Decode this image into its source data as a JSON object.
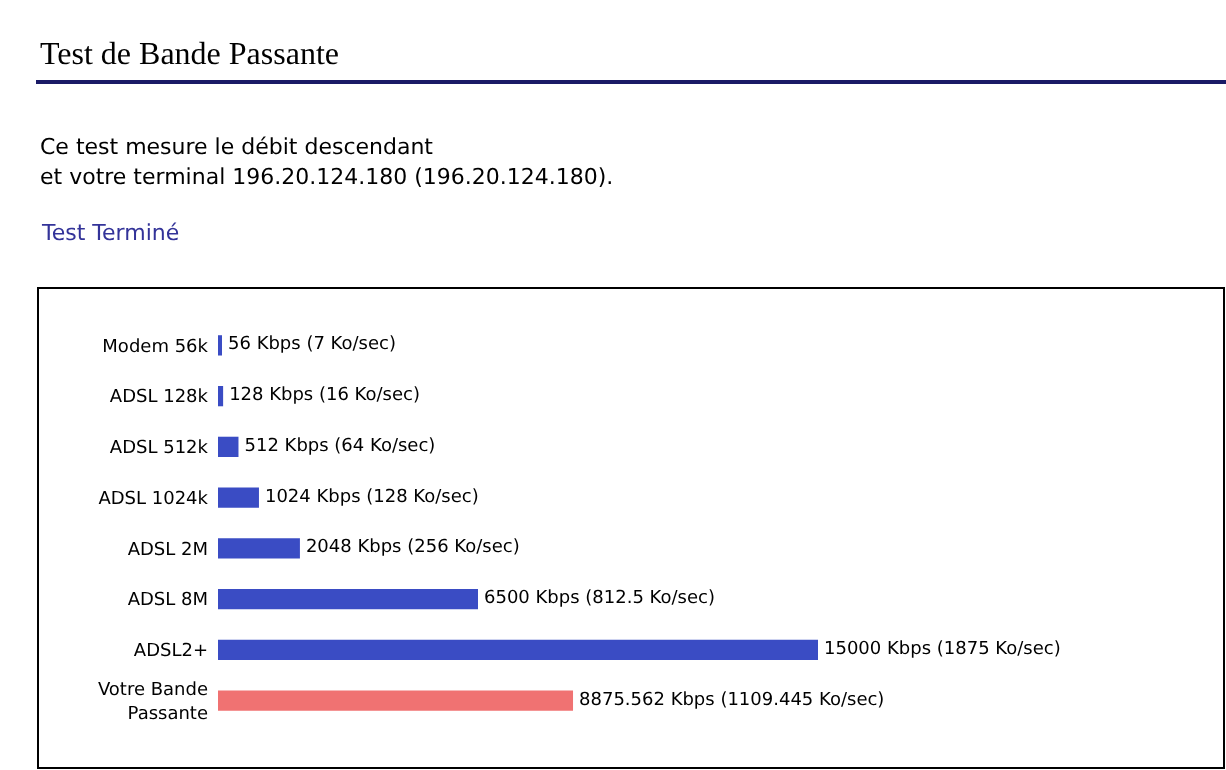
{
  "chart_data": {
    "type": "bar",
    "orientation": "horizontal",
    "title": "Test de Bande Passante",
    "annotations": [
      "Ce test mesure le débit descendant",
      "et votre terminal 196.20.124.180 (196.20.124.180).",
      "Test Terminé"
    ],
    "categories": [
      "Modem 56k",
      "ADSL 128k",
      "ADSL 512k",
      "ADSL 1024k",
      "ADSL 2M",
      "ADSL 8M",
      "ADSL2+",
      "Votre Bande Passante"
    ],
    "values": [
      56,
      128,
      512,
      1024,
      2048,
      6500,
      15000,
      8875.562
    ],
    "colors": [
      "#3a4cc4",
      "#3a4cc4",
      "#3a4cc4",
      "#3a4cc4",
      "#3a4cc4",
      "#3a4cc4",
      "#3a4cc4",
      "#f07272"
    ],
    "value_labels": [
      "56 Kbps (7 Ko/sec)",
      "128 Kbps (16 Ko/sec)",
      "512 Kbps (64 Ko/sec)",
      "1024 Kbps (128 Ko/sec)",
      "2048 Kbps (256 Ko/sec)",
      "6500 Kbps (812.5 Ko/sec)",
      "15000 Kbps (1875 Ko/sec)",
      "8875.562 Kbps (1109.445 Ko/sec)"
    ],
    "tick_labels": "y",
    "legend": false
  }
}
